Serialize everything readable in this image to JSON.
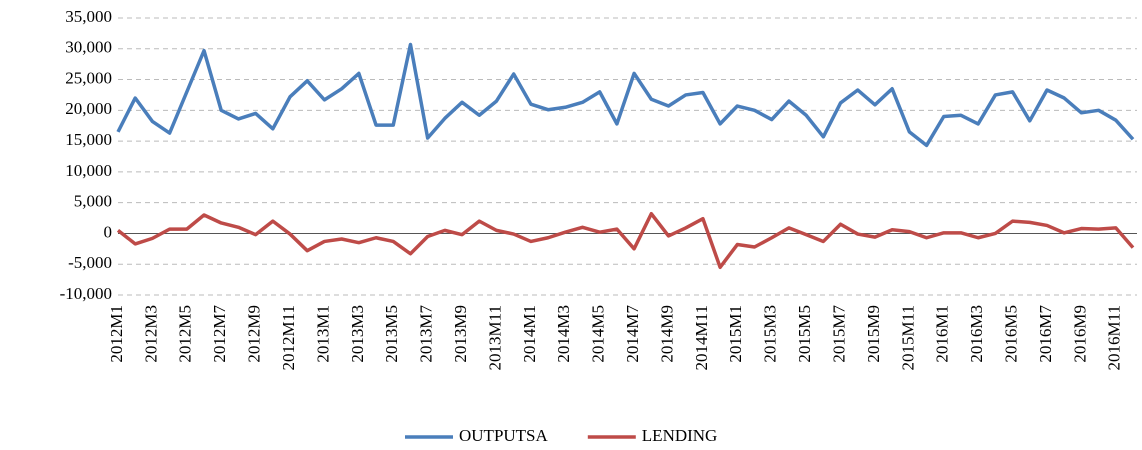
{
  "chart_data": {
    "type": "line",
    "categories": [
      "2012M1",
      null,
      "2012M3",
      null,
      "2012M5",
      null,
      "2012M7",
      null,
      "2012M9",
      null,
      "2012M11",
      null,
      "2013M1",
      null,
      "2013M3",
      null,
      "2013M5",
      null,
      "2013M7",
      null,
      "2013M9",
      null,
      "2013M11",
      null,
      "2014M1",
      null,
      "2014M3",
      null,
      "2014M5",
      null,
      "2014M7",
      null,
      "2014M9",
      null,
      "2014M11",
      null,
      "2015M1",
      null,
      "2015M3",
      null,
      "2015M5",
      null,
      "2015M7",
      null,
      "2015M9",
      null,
      "2015M11",
      null,
      "2016M1",
      null,
      "2016M3",
      null,
      "2016M5",
      null,
      "2016M7",
      null,
      "2016M9",
      null,
      "2016M11",
      null
    ],
    "series": [
      {
        "name": "OUTPUTSA",
        "color": "#4a7ebb",
        "values": [
          16500,
          22000,
          18200,
          16300,
          23000,
          29700,
          20000,
          18600,
          19500,
          17000,
          22200,
          24800,
          21700,
          23500,
          26000,
          17600,
          17600,
          30700,
          15500,
          18700,
          21300,
          19200,
          21500,
          25900,
          21000,
          20100,
          20500,
          21300,
          23000,
          17800,
          26000,
          21800,
          20700,
          22500,
          22900,
          17800,
          20700,
          20000,
          18500,
          21500,
          19200,
          15700,
          21200,
          23300,
          20900,
          23500,
          16500,
          14300,
          19000,
          19200,
          17800,
          22500,
          23000,
          18300,
          23300,
          22000,
          19600,
          20000,
          18400,
          15300
        ]
      },
      {
        "name": "LENDING",
        "color": "#be4b48",
        "values": [
          500,
          -1700,
          -800,
          700,
          700,
          3000,
          1700,
          1000,
          -200,
          2000,
          -100,
          -2800,
          -1300,
          -900,
          -1500,
          -700,
          -1300,
          -3300,
          -500,
          500,
          -200,
          2000,
          500,
          -100,
          -1300,
          -700,
          200,
          1000,
          200,
          700,
          -2500,
          3200,
          -400,
          900,
          2400,
          -5500,
          -1800,
          -2200,
          -700,
          900,
          -200,
          -1300,
          1500,
          -100,
          -600,
          600,
          300,
          -700,
          100,
          100,
          -700,
          0,
          2000,
          1800,
          1300,
          100,
          800,
          700,
          900,
          -2300
        ]
      }
    ],
    "ylim": [
      -10000,
      35000
    ],
    "yticks": [
      {
        "value": -10000,
        "label": "-10,000"
      },
      {
        "value": -5000,
        "label": "-5,000"
      },
      0,
      {
        "value": 5000,
        "label": "5,000"
      },
      {
        "value": 10000,
        "label": "10,000"
      },
      {
        "value": 15000,
        "label": "15,000"
      },
      {
        "value": 20000,
        "label": "20,000"
      },
      {
        "value": 25000,
        "label": "25,000"
      },
      {
        "value": 30000,
        "label": "30,000"
      },
      {
        "value": 35000,
        "label": "35,000"
      }
    ],
    "grid": true,
    "legend": "bottom"
  }
}
